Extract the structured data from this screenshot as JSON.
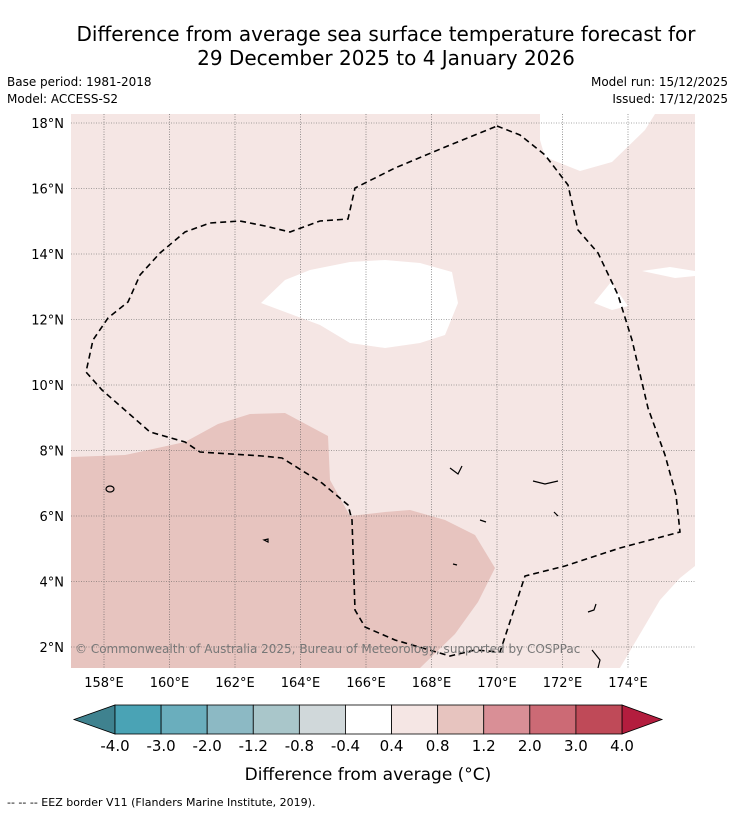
{
  "title_line1": "Difference from average sea surface temperature forecast for",
  "title_line2": "29 December 2025 to 4 January 2026",
  "meta": {
    "base_period": "Base period: 1981-2018",
    "model": "Model: ACCESS-S2",
    "model_run": "Model run: 15/12/2025",
    "issued": "Issued: 17/12/2025"
  },
  "map": {
    "lat_labels": [
      "18°N",
      "16°N",
      "14°N",
      "12°N",
      "10°N",
      "8°N",
      "6°N",
      "4°N",
      "2°N"
    ],
    "lat_values": [
      18,
      16,
      14,
      12,
      10,
      8,
      6,
      4,
      2
    ],
    "lon_labels": [
      "158°E",
      "160°E",
      "162°E",
      "164°E",
      "166°E",
      "168°E",
      "170°E",
      "172°E",
      "174°E"
    ],
    "lon_values": [
      158,
      160,
      162,
      164,
      166,
      168,
      170,
      172,
      174
    ],
    "copyright": "© Commonwealth of Australia 2025, Bureau of Meteorology, supported by COSPPac"
  },
  "colorbar": {
    "ticks": [
      "-4.0",
      "-3.0",
      "-2.0",
      "-1.2",
      "-0.8",
      "-0.4",
      "0.4",
      "0.8",
      "1.2",
      "2.0",
      "3.0",
      "4.0"
    ],
    "colors": [
      "#4aa3b5",
      "#6aaebd",
      "#8cb9c4",
      "#a9c6ca",
      "#d0d8da",
      "#ffffff",
      "#f5e6e4",
      "#e7c4bf",
      "#d98f96",
      "#cc6a75",
      "#bf4a58"
    ],
    "under_color": "#3f828f",
    "over_color": "#b31d3e",
    "label": "Difference from average (°C)"
  },
  "footer": "--  --  -- EEZ border V11 (Flanders Marine Institute, 2019)."
}
